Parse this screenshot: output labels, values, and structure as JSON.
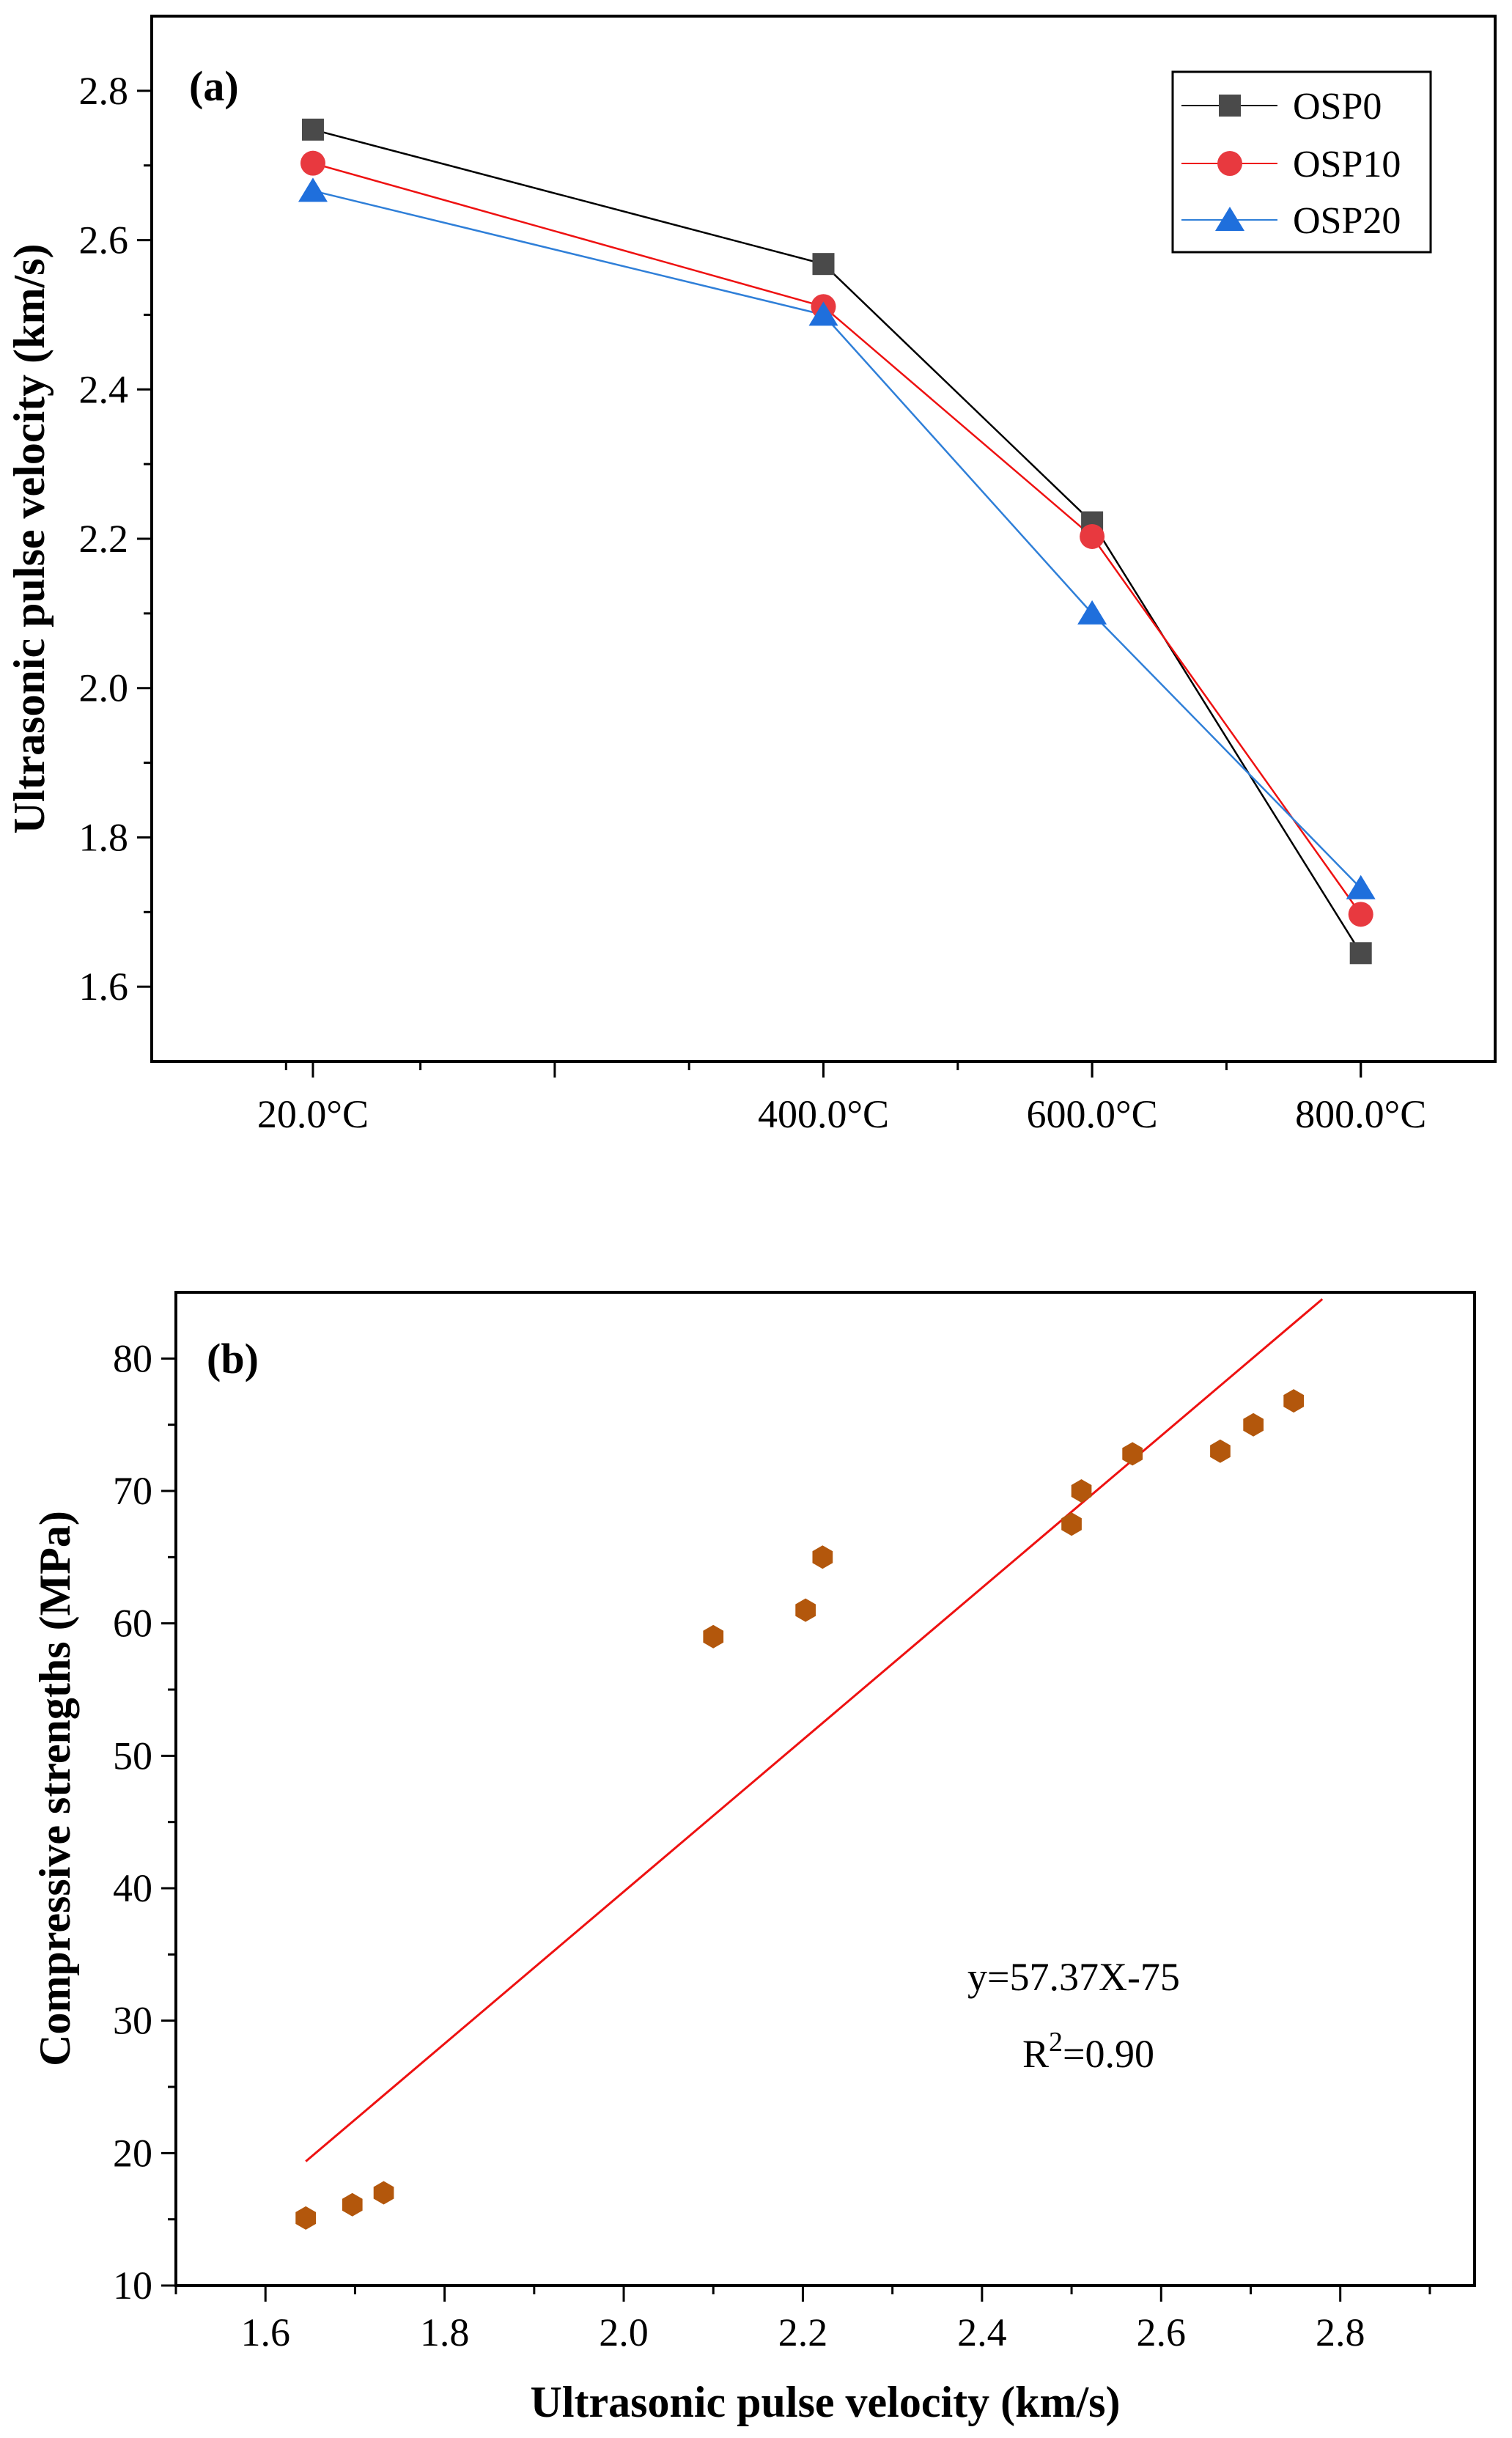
{
  "colors": {
    "OSP0": "#4a4a4a",
    "OSP0_line": "#000000",
    "OSP10": "#e8393f",
    "OSP10_line": "#ee1111",
    "OSP20": "#1f6fdc",
    "OSP20_line": "#2f7fd8",
    "scatter": "#b3570c",
    "fit": "#ee1111"
  },
  "chart_data": [
    {
      "type": "line",
      "panel_label": "(a)",
      "xlabel": "",
      "ylabel": "Ultrasonic pulse velocity (km/s)",
      "x_domain": [
        -100,
        900
      ],
      "ylim": [
        1.5,
        2.9
      ],
      "y_ticks": [
        "1.6",
        "1.8",
        "2.0",
        "2.2",
        "2.4",
        "2.6",
        "2.8"
      ],
      "y_tick_values": [
        1.6,
        1.8,
        2.0,
        2.2,
        2.4,
        2.6,
        2.8
      ],
      "x": [
        20,
        400,
        600,
        800
      ],
      "x_tick_labels": [
        "20.0°C",
        "400.0°C",
        "600.0°C",
        "800.0°C"
      ],
      "legend_position": "top-right",
      "series": [
        {
          "name": "OSP0",
          "marker": "square",
          "values": [
            2.748,
            2.568,
            2.222,
            1.645
          ]
        },
        {
          "name": "OSP10",
          "marker": "circle",
          "values": [
            2.703,
            2.511,
            2.203,
            1.697
          ]
        },
        {
          "name": "OSP20",
          "marker": "triangle",
          "values": [
            2.666,
            2.5,
            2.1,
            1.732
          ]
        }
      ]
    },
    {
      "type": "scatter",
      "panel_label": "(b)",
      "xlabel": "Ultrasonic pulse velocity (km/s)",
      "ylabel": "Compressive strengths (MPa)",
      "xlim": [
        1.5,
        2.95
      ],
      "ylim": [
        10,
        85
      ],
      "x_ticks": [
        "1.6",
        "1.8",
        "2.0",
        "2.2",
        "2.4",
        "2.6",
        "2.8"
      ],
      "x_tick_values": [
        1.6,
        1.8,
        2.0,
        2.2,
        2.4,
        2.6,
        2.8
      ],
      "y_ticks": [
        "10",
        "20",
        "30",
        "40",
        "50",
        "60",
        "70",
        "80"
      ],
      "y_tick_values": [
        10,
        20,
        30,
        40,
        50,
        60,
        70,
        80
      ],
      "points": [
        {
          "x": 1.645,
          "y": 15.1
        },
        {
          "x": 1.697,
          "y": 16.1
        },
        {
          "x": 1.732,
          "y": 17.0
        },
        {
          "x": 2.1,
          "y": 59.0
        },
        {
          "x": 2.203,
          "y": 61.0
        },
        {
          "x": 2.222,
          "y": 65.0
        },
        {
          "x": 2.5,
          "y": 67.5
        },
        {
          "x": 2.511,
          "y": 70.0
        },
        {
          "x": 2.568,
          "y": 72.8
        },
        {
          "x": 2.666,
          "y": 73.0
        },
        {
          "x": 2.703,
          "y": 75.0
        },
        {
          "x": 2.748,
          "y": 76.8
        }
      ],
      "fit": {
        "slope": 57.37,
        "intercept": -75,
        "x_range": [
          1.645,
          2.78
        ]
      },
      "equation_text": "y=57.37X-75",
      "r2_prefix": "R",
      "r2_exponent": "2",
      "r2_suffix": "=0.90"
    }
  ]
}
